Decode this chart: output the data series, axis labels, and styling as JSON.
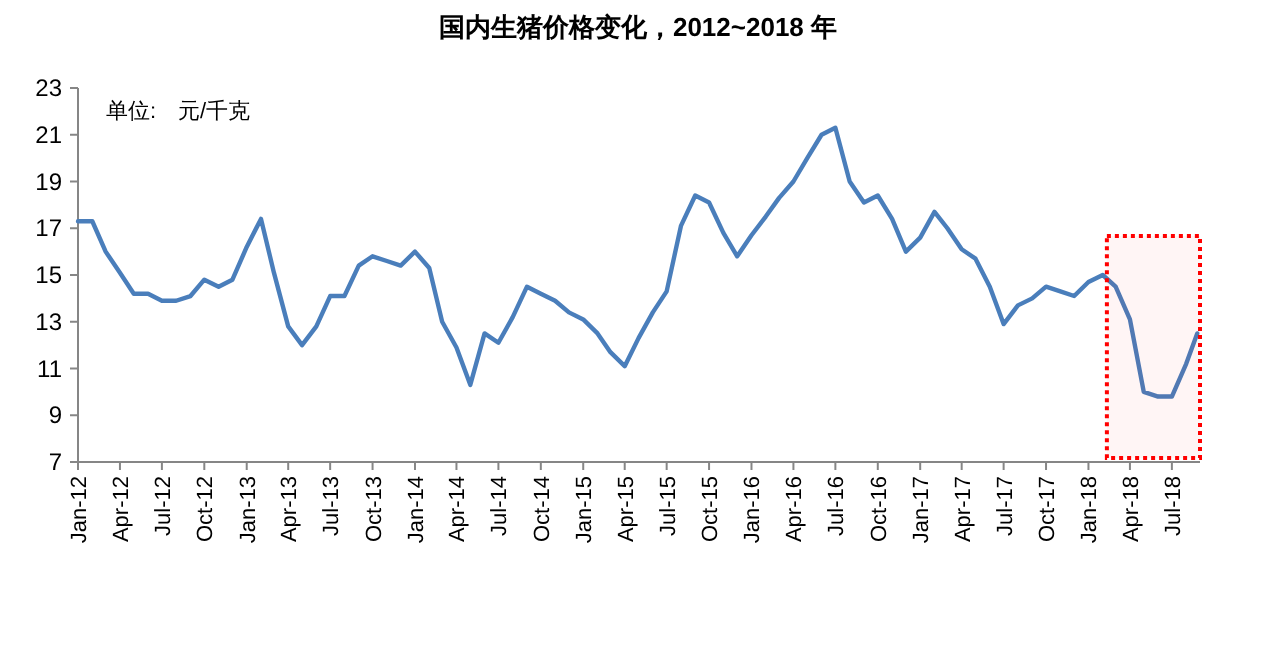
{
  "chart_data": {
    "type": "line",
    "title": "国内生猪价格变化，2012~2018 年",
    "annotations": [
      "单位:　元/千克"
    ],
    "x": [
      "2012-01",
      "2012-02",
      "2012-03",
      "2012-04",
      "2012-05",
      "2012-06",
      "2012-07",
      "2012-08",
      "2012-09",
      "2012-10",
      "2012-11",
      "2012-12",
      "2013-01",
      "2013-02",
      "2013-03",
      "2013-04",
      "2013-05",
      "2013-06",
      "2013-07",
      "2013-08",
      "2013-09",
      "2013-10",
      "2013-11",
      "2013-12",
      "2014-01",
      "2014-02",
      "2014-03",
      "2014-04",
      "2014-05",
      "2014-06",
      "2014-07",
      "2014-08",
      "2014-09",
      "2014-10",
      "2014-11",
      "2014-12",
      "2015-01",
      "2015-02",
      "2015-03",
      "2015-04",
      "2015-05",
      "2015-06",
      "2015-07",
      "2015-08",
      "2015-09",
      "2015-10",
      "2015-11",
      "2015-12",
      "2016-01",
      "2016-02",
      "2016-03",
      "2016-04",
      "2016-05",
      "2016-06",
      "2016-07",
      "2016-08",
      "2016-09",
      "2016-10",
      "2016-11",
      "2016-12",
      "2017-01",
      "2017-02",
      "2017-03",
      "2017-04",
      "2017-05",
      "2017-06",
      "2017-07",
      "2017-08",
      "2017-09",
      "2017-10",
      "2017-11",
      "2017-12",
      "2018-01",
      "2018-02",
      "2018-03",
      "2018-04",
      "2018-05",
      "2018-06",
      "2018-07",
      "2018-08",
      "2018-08-25"
    ],
    "series": [
      {
        "color": "#4a7ebb",
        "values": [
          17.3,
          17.3,
          16.0,
          15.1,
          14.2,
          14.2,
          13.9,
          13.9,
          14.1,
          14.8,
          14.5,
          14.8,
          16.2,
          17.4,
          15.1,
          12.8,
          12.0,
          12.8,
          14.1,
          14.1,
          15.4,
          15.8,
          15.6,
          15.4,
          16.0,
          15.3,
          13.0,
          11.9,
          10.3,
          12.5,
          12.1,
          13.2,
          14.5,
          14.2,
          13.9,
          13.4,
          13.1,
          12.5,
          11.7,
          11.1,
          12.3,
          13.4,
          14.3,
          17.1,
          18.4,
          18.1,
          16.8,
          15.8,
          16.7,
          17.5,
          18.3,
          19.0,
          20.0,
          21.0,
          21.3,
          19.0,
          18.1,
          18.4,
          17.4,
          16.0,
          16.6,
          17.7,
          17.0,
          16.1,
          15.7,
          14.5,
          12.9,
          13.7,
          14.0,
          14.5,
          14.3,
          14.1,
          14.7,
          15.0,
          14.5,
          13.1,
          10.0,
          9.8,
          9.8,
          11.2,
          12.5
        ]
      }
    ],
    "xlim": [
      "2012-01",
      "2018-08-31"
    ],
    "xticks": [
      {
        "value": "2012-01",
        "label": "Jan-12"
      },
      {
        "value": "2012-04",
        "label": "Apr-12"
      },
      {
        "value": "2012-07",
        "label": "Jul-12"
      },
      {
        "value": "2012-10",
        "label": "Oct-12"
      },
      {
        "value": "2013-01",
        "label": "Jan-13"
      },
      {
        "value": "2013-04",
        "label": "Apr-13"
      },
      {
        "value": "2013-07",
        "label": "Jul-13"
      },
      {
        "value": "2013-10",
        "label": "Oct-13"
      },
      {
        "value": "2014-01",
        "label": "Jan-14"
      },
      {
        "value": "2014-04",
        "label": "Apr-14"
      },
      {
        "value": "2014-07",
        "label": "Jul-14"
      },
      {
        "value": "2014-10",
        "label": "Oct-14"
      },
      {
        "value": "2015-01",
        "label": "Jan-15"
      },
      {
        "value": "2015-04",
        "label": "Apr-15"
      },
      {
        "value": "2015-07",
        "label": "Jul-15"
      },
      {
        "value": "2015-10",
        "label": "Oct-15"
      },
      {
        "value": "2016-01",
        "label": "Jan-16"
      },
      {
        "value": "2016-04",
        "label": "Apr-16"
      },
      {
        "value": "2016-07",
        "label": "Jul-16"
      },
      {
        "value": "2016-10",
        "label": "Oct-16"
      },
      {
        "value": "2017-01",
        "label": "Jan-17"
      },
      {
        "value": "2017-04",
        "label": "Apr-17"
      },
      {
        "value": "2017-07",
        "label": "Jul-17"
      },
      {
        "value": "2017-10",
        "label": "Oct-17"
      },
      {
        "value": "2018-01",
        "label": "Jan-18"
      },
      {
        "value": "2018-04",
        "label": "Apr-18"
      },
      {
        "value": "2018-07",
        "label": "Jul-18"
      }
    ],
    "ylim": [
      7,
      23
    ],
    "yticks": [
      7,
      9,
      11,
      13,
      15,
      17,
      19,
      21,
      23
    ],
    "bands": [
      {
        "axis": "x",
        "from": "2018-02-10",
        "to": "2018-08-31",
        "color": "#ff0000"
      }
    ],
    "grid": false,
    "marker": "none",
    "line_style": "solid"
  }
}
